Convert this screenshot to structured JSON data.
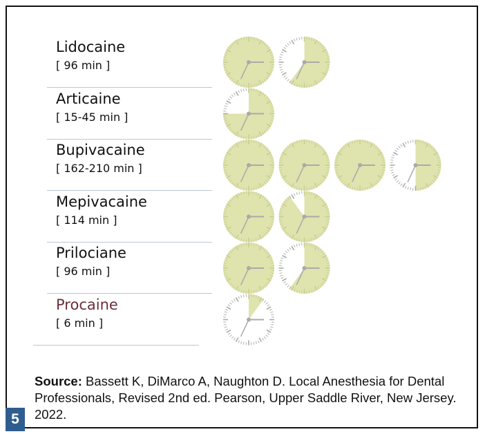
{
  "drugs": [
    {
      "name": "Lidocaine",
      "range": "[ 96 min ]",
      "clock_minutes": [
        60,
        36
      ]
    },
    {
      "name": "Articaine",
      "range": "[ 15-45 min ]",
      "clock_minutes": [
        45
      ]
    },
    {
      "name": "Bupivacaine",
      "range": "[ 162-210 min ]",
      "clock_minutes": [
        60,
        60,
        60,
        30
      ]
    },
    {
      "name": "Mepivacaine",
      "range": "[ 114 min ]",
      "clock_minutes": [
        60,
        54
      ]
    },
    {
      "name": "Prilociane",
      "range": "[ 96 min ]",
      "clock_minutes": [
        60,
        36
      ]
    },
    {
      "name": "Procaine",
      "range": "[ 6 min ]",
      "clock_minutes": [
        6
      ]
    }
  ],
  "source": {
    "label": "Source:",
    "text": " Bassett K, DiMarco A, Naughton D. Local Anesthesia for Dental Professionals, Revised 2nd ed. Pearson, Upper Saddle River, New Jersey. 2022."
  },
  "page_number": "5",
  "colors": {
    "fill": "#dfe3ad",
    "tick": "#a9a9a9",
    "badge": "#2f5d8f",
    "procaine": "#6b2f3a"
  }
}
